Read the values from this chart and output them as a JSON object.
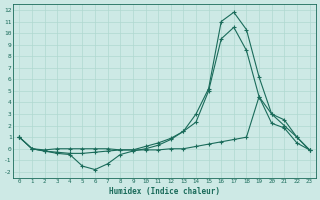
{
  "xlabel": "Humidex (Indice chaleur)",
  "bg_color": "#cde9e5",
  "grid_color": "#b0d8d0",
  "line_color": "#1a6b5a",
  "xlim": [
    -0.5,
    23.5
  ],
  "ylim": [
    -2.5,
    12.5
  ],
  "xticks": [
    0,
    1,
    2,
    3,
    4,
    5,
    6,
    7,
    8,
    9,
    10,
    11,
    12,
    13,
    14,
    15,
    16,
    17,
    18,
    19,
    20,
    21,
    22,
    23
  ],
  "yticks": [
    -2,
    -1,
    0,
    1,
    2,
    3,
    4,
    5,
    6,
    7,
    8,
    9,
    10,
    11,
    12
  ],
  "line1_x": [
    0,
    1,
    2,
    3,
    4,
    5,
    6,
    7,
    8,
    9,
    10,
    11,
    12,
    13,
    14,
    15,
    16,
    17,
    18,
    19,
    20,
    21,
    22,
    23
  ],
  "line1_y": [
    1.0,
    0.0,
    -0.2,
    -0.4,
    -0.5,
    -1.5,
    -1.8,
    -1.3,
    -0.5,
    -0.2,
    0.0,
    0.3,
    0.8,
    1.5,
    3.0,
    5.2,
    11.0,
    11.8,
    10.3,
    6.2,
    3.0,
    2.0,
    1.0,
    -0.1
  ],
  "line2_x": [
    0,
    1,
    2,
    3,
    4,
    5,
    6,
    7,
    8,
    9,
    10,
    11,
    12,
    13,
    14,
    15,
    16,
    17,
    18,
    19,
    20,
    21,
    22,
    23
  ],
  "line2_y": [
    1.0,
    0.0,
    -0.2,
    -0.3,
    -0.4,
    -0.4,
    -0.3,
    -0.2,
    -0.1,
    -0.1,
    0.2,
    0.5,
    0.9,
    1.5,
    2.3,
    5.0,
    9.5,
    10.5,
    8.5,
    4.5,
    2.2,
    1.8,
    0.5,
    -0.1
  ],
  "line3_x": [
    0,
    1,
    2,
    3,
    4,
    5,
    6,
    7,
    8,
    9,
    10,
    11,
    12,
    13,
    14,
    15,
    16,
    17,
    18,
    19,
    20,
    21,
    22,
    23
  ],
  "line3_y": [
    1.0,
    0.0,
    -0.1,
    0.0,
    0.0,
    0.0,
    0.0,
    0.0,
    -0.1,
    -0.1,
    -0.1,
    -0.1,
    0.0,
    0.0,
    0.2,
    0.4,
    0.6,
    0.8,
    1.0,
    4.5,
    3.0,
    2.5,
    1.0,
    -0.1
  ]
}
